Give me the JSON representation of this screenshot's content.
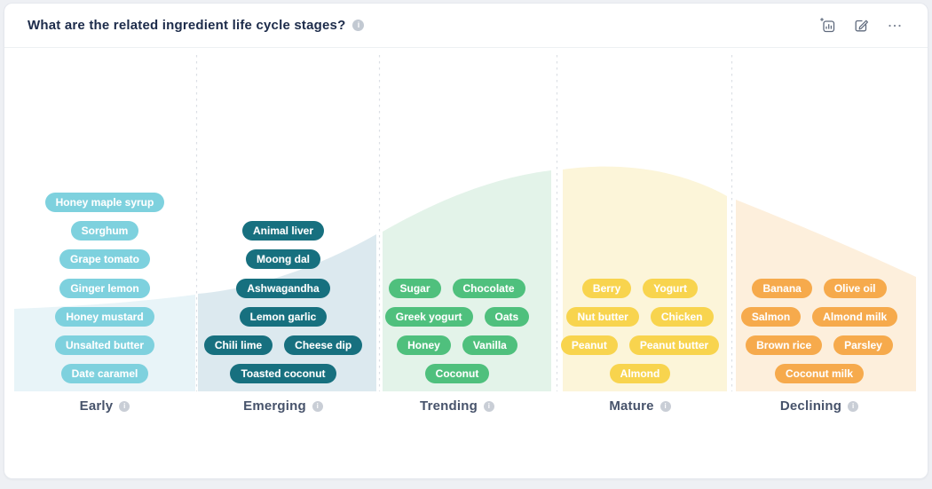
{
  "page": {
    "background_color": "#eef0f4"
  },
  "header": {
    "title": "What are the related ingredient life cycle stages?",
    "title_info_icon": "info-icon",
    "toolbar_icons": [
      "add-chart-icon",
      "edit-icon",
      "more-icon"
    ]
  },
  "chart_data": {
    "type": "area",
    "title": "What are the related ingredient life cycle stages?",
    "description": "Product life cycle bell curve split into five stage bands; ingredient pills are placed inside each stage band.",
    "xlabel": "",
    "ylabel": "",
    "categories": [
      "Early",
      "Emerging",
      "Trending",
      "Mature",
      "Declining"
    ],
    "grid": "dashed vertical dividers between stages",
    "legend": "none",
    "curve_height_pct": [
      {
        "x": "chart start",
        "pct": 36
      },
      {
        "x": "Early/Emerging boundary",
        "pct": 42
      },
      {
        "x": "Emerging/Trending boundary",
        "pct": 70
      },
      {
        "x": "Trending/Mature boundary",
        "pct": 99
      },
      {
        "x": "peak (within Mature)",
        "pct": 100
      },
      {
        "x": "Mature/Declining boundary",
        "pct": 85
      },
      {
        "x": "chart end",
        "pct": 51
      }
    ],
    "stages": [
      {
        "id": "early",
        "label": "Early",
        "pill_color": "#7ed1de",
        "area_color": "#e8f4f8",
        "rows": [
          [
            "Honey maple syrup"
          ],
          [
            "Sorghum"
          ],
          [
            "Grape tomato"
          ],
          [
            "Ginger lemon"
          ],
          [
            "Honey mustard"
          ],
          [
            "Unsalted butter"
          ],
          [
            "Date caramel"
          ]
        ]
      },
      {
        "id": "emerging",
        "label": "Emerging",
        "pill_color": "#17707f",
        "area_color": "#dce9ef",
        "rows": [
          [],
          [
            "Animal liver"
          ],
          [
            "Moong dal"
          ],
          [
            "Ashwagandha"
          ],
          [
            "Lemon garlic"
          ],
          [
            "Chili lime",
            "Cheese dip"
          ],
          [
            "Toasted coconut"
          ]
        ]
      },
      {
        "id": "trending",
        "label": "Trending",
        "pill_color": "#4fc07d",
        "area_color": "#e3f3e9",
        "rows": [
          [],
          [],
          [],
          [
            "Sugar",
            "Chocolate"
          ],
          [
            "Greek yogurt",
            "Oats"
          ],
          [
            "Honey",
            "Vanilla"
          ],
          [
            "Coconut"
          ]
        ]
      },
      {
        "id": "mature",
        "label": "Mature",
        "pill_color": "#f8d44e",
        "area_color": "#fcf5d9",
        "rows": [
          [],
          [],
          [],
          [
            "Berry",
            "Yogurt"
          ],
          [
            "Nut butter",
            "Chicken"
          ],
          [
            "Peanut",
            "Peanut butter"
          ],
          [
            "Almond"
          ]
        ]
      },
      {
        "id": "declining",
        "label": "Declining",
        "pill_color": "#f6aa4c",
        "area_color": "#fdefdc",
        "rows": [
          [],
          [],
          [],
          [
            "Banana",
            "Olive oil"
          ],
          [
            "Salmon",
            "Almond milk"
          ],
          [
            "Brown rice",
            "Parsley"
          ],
          [
            "Coconut milk"
          ]
        ]
      }
    ]
  }
}
